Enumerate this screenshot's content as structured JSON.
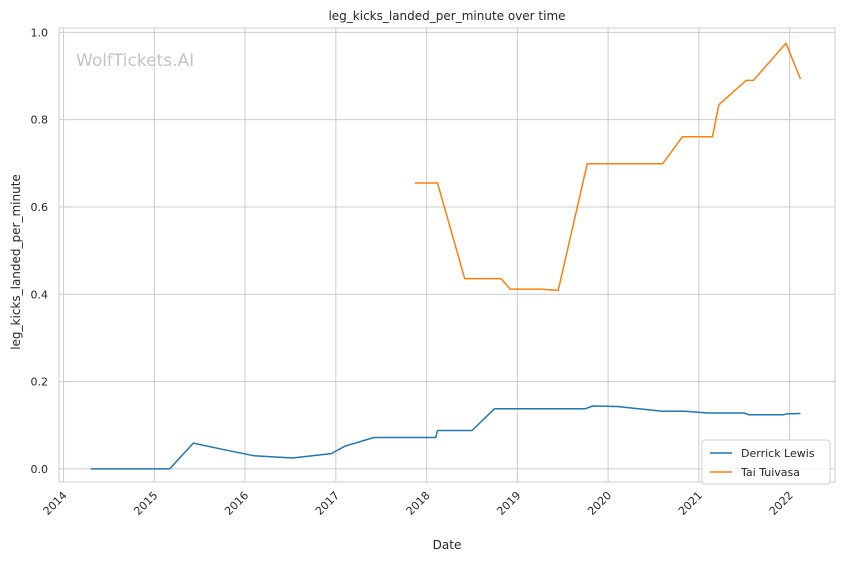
{
  "chart_data": {
    "type": "line",
    "title": "leg_kicks_landed_per_minute over time",
    "xlabel": "Date",
    "ylabel": "leg_kicks_landed_per_minute",
    "watermark": "WolfTickets.AI",
    "x_ticks": [
      "2014",
      "2015",
      "2016",
      "2017",
      "2018",
      "2019",
      "2020",
      "2021",
      "2022"
    ],
    "y_ticks": [
      "0.0",
      "0.2",
      "0.4",
      "0.6",
      "0.8",
      "1.0"
    ],
    "xlim": [
      2013.95,
      2022.5
    ],
    "ylim": [
      -0.03,
      1.01
    ],
    "grid": true,
    "legend_position": "lower-right",
    "series": [
      {
        "name": "Derrick Lewis",
        "color": "#1f77b4",
        "points": [
          [
            2014.3,
            0.0
          ],
          [
            2015.17,
            0.0
          ],
          [
            2015.43,
            0.059
          ],
          [
            2015.75,
            0.045
          ],
          [
            2016.1,
            0.03
          ],
          [
            2016.52,
            0.025
          ],
          [
            2016.95,
            0.035
          ],
          [
            2017.1,
            0.052
          ],
          [
            2017.42,
            0.072
          ],
          [
            2018.1,
            0.072
          ],
          [
            2018.12,
            0.088
          ],
          [
            2018.5,
            0.088
          ],
          [
            2018.75,
            0.138
          ],
          [
            2019.75,
            0.138
          ],
          [
            2019.83,
            0.144
          ],
          [
            2020.1,
            0.143
          ],
          [
            2020.6,
            0.132
          ],
          [
            2020.85,
            0.132
          ],
          [
            2021.1,
            0.128
          ],
          [
            2021.5,
            0.128
          ],
          [
            2021.55,
            0.124
          ],
          [
            2021.93,
            0.124
          ],
          [
            2021.97,
            0.126
          ],
          [
            2022.12,
            0.127
          ]
        ]
      },
      {
        "name": "Tai Tuivasa",
        "color": "#ff7f0e",
        "points": [
          [
            2017.87,
            0.655
          ],
          [
            2018.12,
            0.655
          ],
          [
            2018.42,
            0.436
          ],
          [
            2018.82,
            0.436
          ],
          [
            2018.92,
            0.412
          ],
          [
            2019.25,
            0.412
          ],
          [
            2019.45,
            0.409
          ],
          [
            2019.77,
            0.699
          ],
          [
            2020.6,
            0.699
          ],
          [
            2020.82,
            0.761
          ],
          [
            2021.15,
            0.761
          ],
          [
            2021.22,
            0.834
          ],
          [
            2021.52,
            0.89
          ],
          [
            2021.6,
            0.89
          ],
          [
            2021.96,
            0.975
          ],
          [
            2022.12,
            0.893
          ]
        ]
      }
    ]
  }
}
